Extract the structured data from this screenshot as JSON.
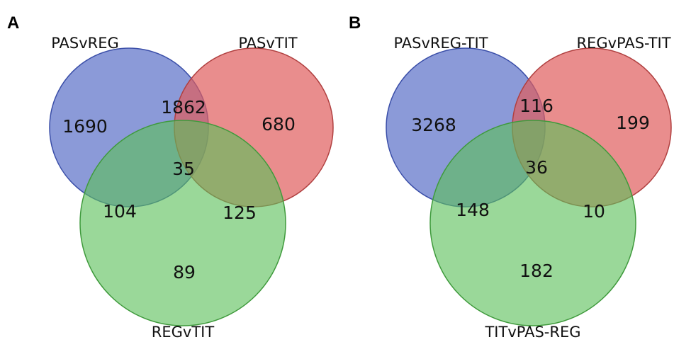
{
  "panels": [
    {
      "letter": "A",
      "sets": {
        "top_left": "PASvREG",
        "top_right": "PASvTIT",
        "bottom": "REGvTIT"
      },
      "counts": {
        "only_top_left": "1690",
        "top_left_and_top_right": "1862",
        "only_top_right": "680",
        "all_three": "35",
        "top_left_and_bottom": "104",
        "top_right_and_bottom": "125",
        "only_bottom": "89"
      }
    },
    {
      "letter": "B",
      "sets": {
        "top_left": "PASvREG-TIT",
        "top_right": "REGvPAS-TIT",
        "bottom": "TITvPAS-REG"
      },
      "counts": {
        "only_top_left": "3268",
        "top_left_and_top_right": "116",
        "only_top_right": "199",
        "all_three": "36",
        "top_left_and_bottom": "148",
        "top_right_and_bottom": "10",
        "only_bottom": "182"
      }
    }
  ],
  "colors": {
    "blue_set": "#5a6fc8",
    "red_set": "#e05d5d",
    "green_set": "#5cc05a",
    "outline_blue": "#3a4ea8",
    "outline_red": "#b04040",
    "outline_green": "#3f9a3c"
  }
}
